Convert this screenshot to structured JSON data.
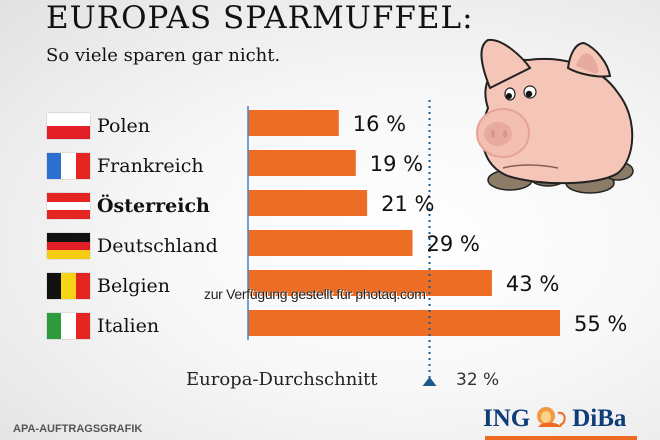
{
  "header": {
    "title": "EUROPAS SPARMUFFEL:",
    "subtitle": "So viele sparen gar nicht."
  },
  "countries": [
    {
      "name": "Polen",
      "flag": "poland-flag",
      "bold": false
    },
    {
      "name": "Frankreich",
      "flag": "france-flag",
      "bold": false
    },
    {
      "name": "Österreich",
      "flag": "austria-flag",
      "bold": true
    },
    {
      "name": "Deutschland",
      "flag": "germany-flag",
      "bold": false
    },
    {
      "name": "Belgien",
      "flag": "belgium-flag",
      "bold": false
    },
    {
      "name": "Italien",
      "flag": "italy-flag",
      "bold": false
    }
  ],
  "chart_data": {
    "type": "bar",
    "orientation": "horizontal",
    "title": "EUROPAS SPARMUFFEL:",
    "subtitle": "So viele sparen gar nicht.",
    "categories": [
      "Polen",
      "Frankreich",
      "Österreich",
      "Deutschland",
      "Belgien",
      "Italien"
    ],
    "values": [
      16,
      19,
      21,
      29,
      43,
      55
    ],
    "value_labels": [
      "16 %",
      "19 %",
      "21 %",
      "29 %",
      "43 %",
      "55 %"
    ],
    "unit": "%",
    "xlim": [
      0,
      55
    ],
    "grid": false,
    "reference_line": {
      "label": "Europa-Durchschnitt",
      "value": 32,
      "value_label": "32 %",
      "style": "dotted"
    },
    "colors": {
      "bar": "#ee6d25",
      "axis": "#4a7fd0",
      "reference": "#1b5a8c"
    }
  },
  "average": {
    "label": "Europa-Durchschnitt",
    "value_label": "32 %"
  },
  "watermark": "zur Verfügung gestellt für photaq.com",
  "footer": {
    "source": "APA-AUFTRAGSGRAFIK",
    "logo_left": "ING",
    "logo_right": "DiBa",
    "logo_accent": "#ee6a22",
    "logo_color": "#0e3d7a"
  },
  "illustration": "piggy-bank-pig"
}
